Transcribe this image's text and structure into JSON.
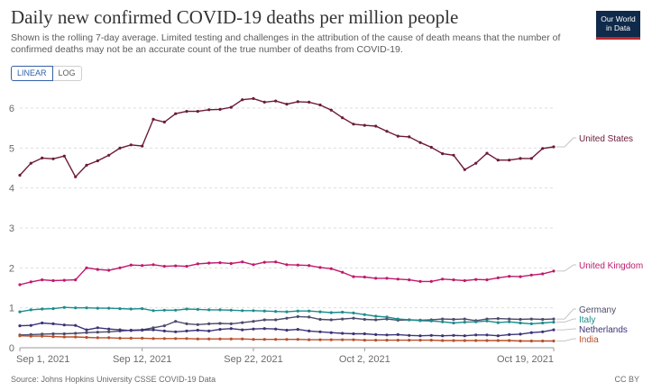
{
  "header": {
    "title": "Daily new confirmed COVID-19 deaths per million people",
    "subtitle": "Shown is the rolling 7-day average. Limited testing and challenges in the attribution of the cause of death means that the number of confirmed deaths may not be an accurate count of the true number of deaths from COVID-19."
  },
  "logo": {
    "line1": "Our World",
    "line2": "in Data"
  },
  "controls": {
    "linear_label": "LINEAR",
    "log_label": "LOG",
    "selected": "LINEAR"
  },
  "footer": {
    "source": "Source: Johns Hopkins University CSSE COVID-19 Data",
    "license": "CC BY"
  },
  "chart_data": {
    "type": "line",
    "title": "Daily new confirmed COVID-19 deaths per million people",
    "xlabel": "",
    "ylabel": "",
    "x_start": "2021-09-01",
    "x_end": "2021-10-21",
    "x_ticks": [
      "Sep 1, 2021",
      "Sep 12, 2021",
      "Sep 22, 2021",
      "Oct 2, 2021",
      "Oct 19, 2021"
    ],
    "x_tick_days": [
      0,
      11,
      21,
      31,
      48
    ],
    "ylim": [
      0,
      6.7
    ],
    "y_ticks": [
      0,
      1,
      2,
      3,
      4,
      5,
      6
    ],
    "grid": true,
    "legend": "right",
    "series": [
      {
        "name": "United States",
        "color": "#6d1a3a",
        "values": [
          4.32,
          4.62,
          4.75,
          4.73,
          4.8,
          4.28,
          4.57,
          4.68,
          4.82,
          5.0,
          5.08,
          5.05,
          5.72,
          5.65,
          5.86,
          5.92,
          5.92,
          5.96,
          5.97,
          6.02,
          6.21,
          6.24,
          6.15,
          6.18,
          6.1,
          6.16,
          6.15,
          6.08,
          5.95,
          5.76,
          5.6,
          5.57,
          5.55,
          5.42,
          5.3,
          5.28,
          5.14,
          5.02,
          4.86,
          4.82,
          4.46,
          4.62,
          4.87,
          4.7,
          4.7,
          4.74,
          4.74,
          4.99,
          5.03
        ]
      },
      {
        "name": "United Kingdom",
        "color": "#c0196d",
        "values": [
          1.58,
          1.65,
          1.7,
          1.68,
          1.69,
          1.7,
          2.0,
          1.96,
          1.94,
          2.0,
          2.07,
          2.06,
          2.08,
          2.04,
          2.05,
          2.04,
          2.1,
          2.12,
          2.13,
          2.11,
          2.15,
          2.08,
          2.14,
          2.15,
          2.08,
          2.07,
          2.06,
          2.01,
          1.98,
          1.89,
          1.78,
          1.77,
          1.74,
          1.74,
          1.72,
          1.7,
          1.66,
          1.66,
          1.72,
          1.7,
          1.68,
          1.71,
          1.7,
          1.75,
          1.79,
          1.78,
          1.82,
          1.85,
          1.92
        ]
      },
      {
        "name": "Germany",
        "color": "#4b4b6a",
        "values": [
          0.32,
          0.33,
          0.34,
          0.35,
          0.35,
          0.36,
          0.38,
          0.39,
          0.4,
          0.42,
          0.44,
          0.45,
          0.5,
          0.55,
          0.66,
          0.6,
          0.58,
          0.6,
          0.61,
          0.6,
          0.63,
          0.66,
          0.7,
          0.7,
          0.74,
          0.78,
          0.77,
          0.71,
          0.7,
          0.72,
          0.74,
          0.71,
          0.7,
          0.72,
          0.69,
          0.7,
          0.69,
          0.7,
          0.72,
          0.71,
          0.72,
          0.68,
          0.72,
          0.73,
          0.72,
          0.71,
          0.72,
          0.71,
          0.72
        ]
      },
      {
        "name": "Italy",
        "color": "#1d8c8c",
        "values": [
          0.9,
          0.95,
          0.97,
          0.98,
          1.01,
          1.0,
          1.0,
          0.99,
          0.99,
          0.98,
          0.97,
          0.98,
          0.93,
          0.94,
          0.94,
          0.97,
          0.96,
          0.95,
          0.95,
          0.94,
          0.93,
          0.93,
          0.92,
          0.91,
          0.9,
          0.92,
          0.92,
          0.9,
          0.88,
          0.89,
          0.87,
          0.83,
          0.79,
          0.77,
          0.72,
          0.7,
          0.68,
          0.67,
          0.65,
          0.62,
          0.64,
          0.65,
          0.67,
          0.63,
          0.65,
          0.62,
          0.6,
          0.62,
          0.64
        ]
      },
      {
        "name": "Netherlands",
        "color": "#3b3478",
        "values": [
          0.55,
          0.56,
          0.62,
          0.6,
          0.57,
          0.56,
          0.45,
          0.5,
          0.47,
          0.45,
          0.43,
          0.44,
          0.45,
          0.42,
          0.4,
          0.42,
          0.44,
          0.42,
          0.46,
          0.48,
          0.45,
          0.47,
          0.48,
          0.47,
          0.44,
          0.46,
          0.42,
          0.4,
          0.38,
          0.36,
          0.35,
          0.35,
          0.33,
          0.32,
          0.33,
          0.31,
          0.3,
          0.31,
          0.3,
          0.31,
          0.3,
          0.32,
          0.32,
          0.3,
          0.33,
          0.34,
          0.38,
          0.4,
          0.45
        ]
      },
      {
        "name": "India",
        "color": "#b8502a",
        "values": [
          0.3,
          0.29,
          0.29,
          0.28,
          0.27,
          0.27,
          0.26,
          0.25,
          0.25,
          0.24,
          0.24,
          0.24,
          0.23,
          0.23,
          0.23,
          0.23,
          0.22,
          0.22,
          0.22,
          0.22,
          0.22,
          0.21,
          0.21,
          0.21,
          0.21,
          0.21,
          0.2,
          0.2,
          0.2,
          0.2,
          0.2,
          0.19,
          0.19,
          0.19,
          0.19,
          0.19,
          0.19,
          0.19,
          0.18,
          0.18,
          0.18,
          0.18,
          0.18,
          0.18,
          0.18,
          0.17,
          0.17,
          0.17,
          0.17
        ]
      }
    ]
  }
}
